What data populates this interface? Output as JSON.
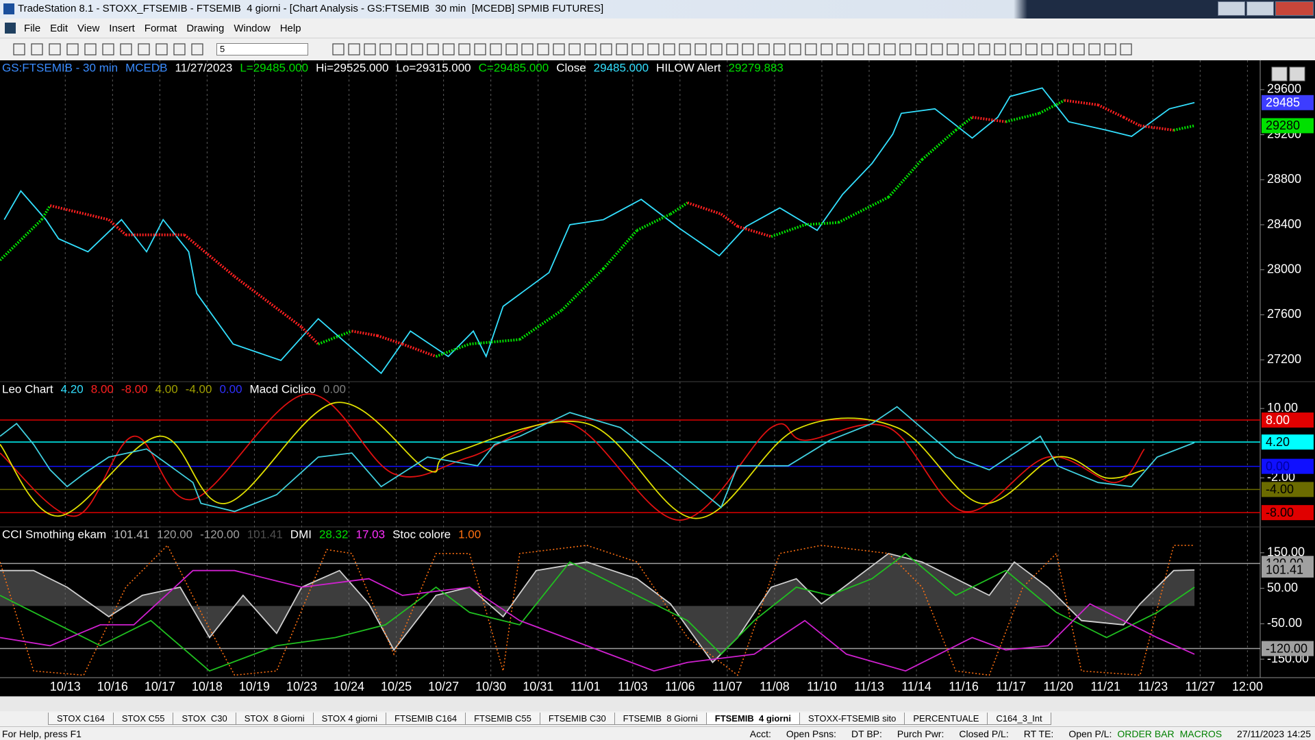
{
  "window": {
    "title": "TradeStation 8.1 - STOXX_FTSEMIB - FTSEMIB  4 giorni - [Chart Analysis - GS:FTSEMIB  30 min  [MCEDB] SPMIB FUTURES]"
  },
  "menu": [
    "File",
    "Edit",
    "View",
    "Insert",
    "Format",
    "Drawing",
    "Window",
    "Help"
  ],
  "toolbar": {
    "interval": "5"
  },
  "chart_data": [
    {
      "type": "line",
      "header": [
        {
          "text": "GS:FTSEMIB - 30 min",
          "color": "#3a8cff"
        },
        {
          "text": "MCEDB",
          "color": "#3a8cff"
        },
        {
          "text": "11/27/2023",
          "color": "#ffffff"
        },
        {
          "text": "L=29485.000",
          "color": "#00e000"
        },
        {
          "text": "Hi=29525.000",
          "color": "#ffffff"
        },
        {
          "text": "Lo=29315.000",
          "color": "#ffffff"
        },
        {
          "text": "C=29485.000",
          "color": "#00e000"
        },
        {
          "text": "Close",
          "color": "#ffffff"
        },
        {
          "text": "29485.000",
          "color": "#33e0ff"
        },
        {
          "text": "HILOW Alert",
          "color": "#ffffff"
        },
        {
          "text": "29279.883",
          "color": "#00e000"
        }
      ],
      "ylim": [
        27006,
        29861
      ],
      "yticks": [
        29600,
        29200,
        28800,
        28400,
        28000,
        27600,
        27200
      ],
      "value_markers": [
        {
          "value": 29485,
          "color": "#3d3dff",
          "text_color": "#ffffff"
        },
        {
          "value": 29280,
          "color": "#00e000",
          "text_color": "#000000"
        }
      ],
      "series": [
        {
          "color": "#33e0ff",
          "style": "line",
          "x": [
            -1.29,
            -0.94,
            -0.41,
            -0.14,
            0.48,
            1.19,
            1.72,
            2.07,
            2.61,
            2.78,
            3.55,
            4.56,
            5.35,
            6.06,
            6.68,
            7.3,
            8.1,
            8.63,
            8.9,
            9.26,
            10.23,
            10.67,
            11.38,
            12.18,
            12.98,
            13.83,
            14.4,
            15.11,
            15.9,
            16.44,
            17.06,
            17.5,
            17.68,
            18.39,
            19.18,
            19.72,
            19.98,
            20.66,
            21.22,
            22.02,
            22.55,
            23.35,
            23.88
          ],
          "values": [
            28445,
            28700,
            28445,
            28275,
            28160,
            28445,
            28160,
            28445,
            28160,
            27790,
            27340,
            27195,
            27565,
            27305,
            27080,
            27455,
            27230,
            27455,
            27230,
            27675,
            27975,
            28400,
            28445,
            28625,
            28370,
            28125,
            28385,
            28550,
            28350,
            28670,
            28945,
            29205,
            29390,
            29430,
            29170,
            29355,
            29540,
            29615,
            29315,
            29240,
            29185,
            29430,
            29485
          ]
        },
        {
          "style": "slope",
          "up_color": "#00e000",
          "down_color": "#ff2020",
          "x": [
            -1.38,
            -0.5,
            -0.32,
            0.92,
            1.28,
            2.52,
            3.58,
            5.0,
            5.35,
            6.06,
            6.6,
            7.13,
            7.84,
            8.55,
            9.61,
            10.5,
            11.38,
            12.09,
            12.8,
            13.16,
            13.87,
            14.22,
            14.93,
            15.64,
            16.35,
            17.41,
            18.12,
            18.83,
            19.18,
            19.89,
            20.6,
            21.13,
            21.84,
            22.38,
            22.73,
            23.44,
            23.88
          ],
          "values": [
            28085,
            28445,
            28570,
            28445,
            28310,
            28310,
            27940,
            27490,
            27340,
            27455,
            27415,
            27340,
            27230,
            27340,
            27380,
            27640,
            28010,
            28350,
            28495,
            28595,
            28495,
            28385,
            28295,
            28400,
            28420,
            28645,
            28980,
            29240,
            29355,
            29315,
            29390,
            29505,
            29465,
            29355,
            29280,
            29240,
            29280
          ]
        }
      ]
    },
    {
      "type": "line",
      "header": [
        {
          "text": "Leo Chart",
          "color": "#ffffff"
        },
        {
          "text": "4.20",
          "color": "#33e0ff"
        },
        {
          "text": "8.00",
          "color": "#ff2020"
        },
        {
          "text": "-8.00",
          "color": "#ff2020"
        },
        {
          "text": "4.00",
          "color": "#a0a000"
        },
        {
          "text": "-4.00",
          "color": "#a0a000"
        },
        {
          "text": "0.00",
          "color": "#3030ff"
        },
        {
          "text": "Macd Ciclico",
          "color": "#ffffff"
        },
        {
          "text": "0.00",
          "color": "#808080"
        }
      ],
      "ylim": [
        -10.47,
        14.64
      ],
      "yticks": [
        {
          "value": 10,
          "label": "10.00"
        },
        {
          "value": -2,
          "label": "-2.00"
        }
      ],
      "levels": [
        {
          "value": 8,
          "label": "8.00",
          "color": "#e00000",
          "text_color": "#ffffff",
          "line": true
        },
        {
          "value": 4.2,
          "label": "4.20",
          "color": "#00ffff",
          "text_color": "#000000",
          "line": true
        },
        {
          "value": 0,
          "label": "0.00",
          "color": "#1010ff",
          "text_color": "#0000a0",
          "line": true
        },
        {
          "value": -4,
          "label": "-4.00",
          "color": "#6b6b00",
          "text_color": "#000000",
          "line": true
        },
        {
          "value": -8,
          "label": "-8.00",
          "color": "#e00000",
          "text_color": "#000000",
          "line": true
        }
      ],
      "series": [
        {
          "color": "#e01010",
          "style": "smooth",
          "x": [
            -1.38,
            0.21,
            1.45,
            2.7,
            5.09,
            6.95,
            8.55,
            10.67,
            12.98,
            14.93,
            15.64,
            17.41,
            19.01,
            20.78,
            22.2,
            22.82
          ],
          "values": [
            2.3,
            -8.6,
            5.2,
            -5.7,
            12.5,
            -1.3,
            1.6,
            7.4,
            -9.3,
            6.7,
            4.5,
            6.7,
            -7.8,
            1.6,
            -2.8,
            3.0
          ]
        },
        {
          "color": "#e0e000",
          "style": "smooth",
          "x": [
            -1.38,
            -0.14,
            1.99,
            3.4,
            5.71,
            7.66,
            8.19,
            11.03,
            13.33,
            15.46,
            17.59,
            19.36,
            20.96,
            22.02,
            22.82
          ],
          "values": [
            3.8,
            -8.6,
            5.2,
            -6.4,
            11.0,
            -0.6,
            2.3,
            7.4,
            -9.0,
            6.4,
            6.7,
            -6.4,
            1.6,
            -2.0,
            -0.6
          ]
        },
        {
          "color": "#40d0e0",
          "style": "line",
          "x": [
            -1.38,
            -1.03,
            -0.67,
            -0.32,
            0.04,
            0.39,
            0.92,
            1.72,
            2.7,
            2.87,
            3.58,
            4.47,
            5.35,
            6.06,
            6.68,
            7.66,
            8.72,
            9.08,
            9.61,
            10.67,
            11.74,
            12.8,
            13.87,
            14.22,
            15.29,
            16.17,
            17.06,
            17.59,
            18.83,
            19.54,
            20.62,
            20.98,
            21.84,
            22.55,
            23.09,
            23.88
          ],
          "values": [
            5.2,
            7.4,
            3.8,
            -0.6,
            -3.5,
            -1.3,
            1.6,
            3.0,
            -2.8,
            -6.4,
            -7.8,
            -4.9,
            1.6,
            2.3,
            -3.5,
            1.6,
            0.1,
            3.8,
            5.2,
            9.3,
            6.7,
            0.1,
            -7.1,
            0.1,
            0.1,
            4.5,
            7.4,
            10.3,
            1.6,
            -0.6,
            5.2,
            0.1,
            -2.8,
            -3.5,
            1.6,
            4.1
          ]
        }
      ]
    },
    {
      "type": "line",
      "header": [
        {
          "text": "CCI Smothing ekam",
          "color": "#ffffff"
        },
        {
          "text": "101.41",
          "color": "#c0c0c0"
        },
        {
          "text": "120.00",
          "color": "#a0a0a0"
        },
        {
          "text": "-120.00",
          "color": "#a0a0a0"
        },
        {
          "text": "101.41",
          "color": "#505050"
        },
        {
          "text": "DMI",
          "color": "#ffffff"
        },
        {
          "text": "28.32",
          "color": "#00e000"
        },
        {
          "text": "17.03",
          "color": "#ff30ff"
        },
        {
          "text": "Stoc colore",
          "color": "#ffffff"
        },
        {
          "text": "1.00",
          "color": "#ff7010"
        }
      ],
      "ylim": [
        -202,
        223
      ],
      "yticks": [
        {
          "value": 150,
          "label": "150.00"
        },
        {
          "value": 50,
          "label": "50.00"
        },
        {
          "value": -50,
          "label": "-50.00"
        },
        {
          "value": -150,
          "label": "-150.00"
        }
      ],
      "levels": [
        {
          "value": 120,
          "label": "120.00",
          "color": "#a0a0a0",
          "text_color": "#000000",
          "line": true
        },
        {
          "value": 101.41,
          "label": "101.41",
          "color": "#a0a0a0",
          "text_color": "#000000",
          "line": false
        },
        {
          "value": -120,
          "label": "-120.00",
          "color": "#a0a0a0",
          "text_color": "#000000",
          "line": true
        }
      ],
      "xlim": [
        -1.38,
        25.27
      ],
      "xticks": [
        {
          "value": 0,
          "label": "10/13"
        },
        {
          "value": 1,
          "label": "10/16"
        },
        {
          "value": 2,
          "label": "10/17"
        },
        {
          "value": 3,
          "label": "10/18"
        },
        {
          "value": 4,
          "label": "10/19"
        },
        {
          "value": 5,
          "label": "10/23"
        },
        {
          "value": 6,
          "label": "10/24"
        },
        {
          "value": 7,
          "label": "10/25"
        },
        {
          "value": 8,
          "label": "10/27"
        },
        {
          "value": 9,
          "label": "10/30"
        },
        {
          "value": 10,
          "label": "10/31"
        },
        {
          "value": 11,
          "label": "11/01"
        },
        {
          "value": 12,
          "label": "11/03"
        },
        {
          "value": 13,
          "label": "11/06"
        },
        {
          "value": 14,
          "label": "11/07"
        },
        {
          "value": 15,
          "label": "11/08"
        },
        {
          "value": 16,
          "label": "11/10"
        },
        {
          "value": 17,
          "label": "11/13"
        },
        {
          "value": 18,
          "label": "11/14"
        },
        {
          "value": 19,
          "label": "11/16"
        },
        {
          "value": 20,
          "label": "11/17"
        },
        {
          "value": 21,
          "label": "11/20"
        },
        {
          "value": 22,
          "label": "11/21"
        },
        {
          "value": 23,
          "label": "11/23"
        },
        {
          "value": 24,
          "label": "11/27"
        },
        {
          "value": 25,
          "label": "12:00"
        }
      ],
      "series": [
        {
          "color": "#d0d0d0",
          "style": "area",
          "fill": "#707070",
          "x": [
            -1.38,
            -0.67,
            0.04,
            0.92,
            1.63,
            2.43,
            3.05,
            3.76,
            4.47,
            5.0,
            5.8,
            6.42,
            6.95,
            7.84,
            8.55,
            9.26,
            9.96,
            11.03,
            12.09,
            12.8,
            13.69,
            14.22,
            14.93,
            15.46,
            15.99,
            16.7,
            17.41,
            18.12,
            18.83,
            19.54,
            20.07,
            20.78,
            21.49,
            22.38,
            22.73,
            23.44,
            23.88
          ],
          "values": [
            100,
            100,
            53,
            -30,
            30,
            53,
            -89,
            30,
            -77,
            53,
            100,
            6,
            -124,
            30,
            53,
            -30,
            100,
            124,
            77,
            6,
            -159,
            -89,
            53,
            77,
            6,
            77,
            148,
            124,
            77,
            30,
            124,
            53,
            -41,
            -53,
            6,
            100,
            101.41
          ]
        },
        {
          "color": "#ff7010",
          "style": "dotted",
          "x": [
            -1.38,
            -0.67,
            0.39,
            1.28,
            2.16,
            2.87,
            3.58,
            4.47,
            5.53,
            6.06,
            6.95,
            7.84,
            8.55,
            9.26,
            9.61,
            11.03,
            12.09,
            13.16,
            14.22,
            15.11,
            15.99,
            17.41,
            18.12,
            18.83,
            19.54,
            20.25,
            20.96,
            21.49,
            22.73,
            23.44,
            23.88
          ],
          "values": [
            124,
            -183,
            -195,
            53,
            171,
            -18,
            -195,
            -183,
            159,
            148,
            -136,
            148,
            148,
            -183,
            148,
            171,
            124,
            -89,
            -195,
            148,
            171,
            148,
            53,
            -183,
            -195,
            53,
            148,
            -183,
            -195,
            171,
            171
          ]
        },
        {
          "color": "#20c020",
          "style": "line",
          "x": [
            -1.38,
            -0.32,
            0.74,
            1.81,
            3.05,
            4.47,
            5.71,
            6.77,
            7.84,
            8.55,
            9.61,
            10.67,
            11.74,
            13.16,
            13.87,
            14.57,
            15.46,
            16.17,
            17.06,
            17.77,
            18.83,
            19.89,
            20.96,
            22.02,
            23.09,
            23.88
          ],
          "values": [
            30,
            -41,
            -112,
            -41,
            -183,
            -112,
            -89,
            -53,
            53,
            -18,
            -53,
            124,
            53,
            -41,
            -136,
            -41,
            53,
            30,
            77,
            148,
            30,
            100,
            -18,
            -89,
            -18,
            53
          ]
        },
        {
          "color": "#d020d0",
          "style": "line",
          "x": [
            -1.38,
            -0.32,
            0.74,
            1.45,
            2.7,
            3.58,
            5.0,
            6.42,
            7.13,
            8.55,
            9.61,
            11.03,
            12.45,
            13.16,
            14.57,
            15.64,
            16.52,
            17.77,
            19.18,
            19.89,
            20.78,
            21.67,
            23.09,
            23.88
          ],
          "values": [
            -89,
            -112,
            -53,
            -53,
            100,
            100,
            53,
            77,
            30,
            53,
            -41,
            -112,
            -183,
            -159,
            -136,
            -41,
            -136,
            -183,
            -89,
            -124,
            -112,
            6,
            -89,
            -136
          ]
        }
      ]
    }
  ],
  "tabs": [
    {
      "label": "STOX C164",
      "active": false
    },
    {
      "label": "STOX C55",
      "active": false
    },
    {
      "label": "STOX  C30",
      "active": false
    },
    {
      "label": "STOX  8 Giorni",
      "active": false
    },
    {
      "label": "STOX 4 giorni",
      "active": false
    },
    {
      "label": "FTSEMIB C164",
      "active": false
    },
    {
      "label": "FTSEMIB C55",
      "active": false
    },
    {
      "label": "FTSEMIB C30",
      "active": false
    },
    {
      "label": "FTSEMIB  8 Giorni",
      "active": false
    },
    {
      "label": "FTSEMIB  4 giorni",
      "active": true
    },
    {
      "label": "STOXX-FTSEMIB sito",
      "active": false
    },
    {
      "label": "PERCENTUALE",
      "active": false
    },
    {
      "label": "C164_3_Int",
      "active": false
    }
  ],
  "status": {
    "help": "For Help, press F1",
    "fields": [
      "Acct:",
      "Open Psns:",
      "DT BP:",
      "Purch Pwr:",
      "Closed P/L:",
      "RT TE:",
      "Open P/L:"
    ],
    "order_bar": "ORDER BAR",
    "macros": "MACROS",
    "clock": "27/11/2023 14:25"
  }
}
